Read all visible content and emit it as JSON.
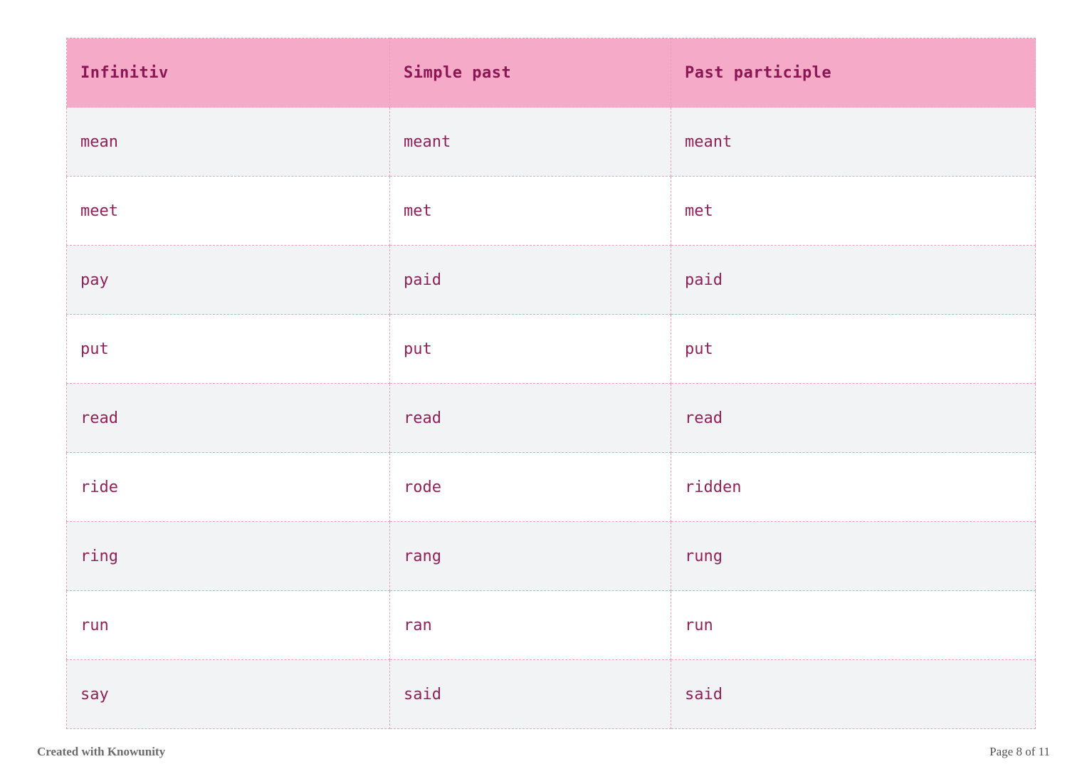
{
  "table": {
    "headers": [
      "Infinitiv",
      "Simple past",
      "Past participle"
    ],
    "rows": [
      [
        "mean",
        "meant",
        "meant"
      ],
      [
        "meet",
        "met",
        "met"
      ],
      [
        "pay",
        "paid",
        "paid"
      ],
      [
        "put",
        "put",
        "put"
      ],
      [
        "read",
        "read",
        "read"
      ],
      [
        "ride",
        "rode",
        "ridden"
      ],
      [
        "ring",
        "rang",
        "rung"
      ],
      [
        "run",
        "ran",
        "run"
      ],
      [
        "say",
        "said",
        "said"
      ]
    ]
  },
  "footer": {
    "credit": "Created with Knowunity",
    "page": "Page 8 of 11"
  },
  "colors": {
    "header_bg": "#f5abc7",
    "header_text": "#8c1556",
    "cell_text": "#8e2158",
    "alt_row_bg": "#f2f3f5",
    "border": "#e8a2b8"
  }
}
